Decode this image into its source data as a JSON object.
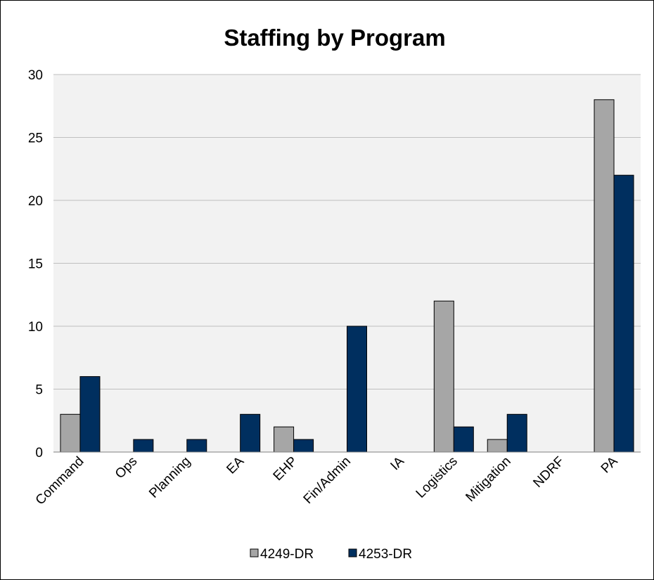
{
  "chart_data": {
    "type": "bar",
    "title": "Staffing by Program",
    "categories": [
      "Command",
      "Ops",
      "Planning",
      "EA",
      "EHP",
      "Fin/Admin",
      "IA",
      "Logistics",
      "Mitigation",
      "NDRF",
      "PA"
    ],
    "series": [
      {
        "name": "4249-DR",
        "color": "#a6a6a6",
        "values": [
          3,
          0,
          0,
          0,
          2,
          0,
          0,
          12,
          1,
          0,
          28
        ]
      },
      {
        "name": "4253-DR",
        "color": "#002f5f",
        "values": [
          6,
          1,
          1,
          3,
          1,
          10,
          0,
          2,
          3,
          0,
          22
        ]
      }
    ],
    "ylim": [
      0,
      30
    ],
    "yticks": [
      0,
      5,
      10,
      15,
      20,
      25,
      30
    ],
    "grid": true,
    "plot_background": "#f2f2f2",
    "legend_position": "bottom"
  }
}
